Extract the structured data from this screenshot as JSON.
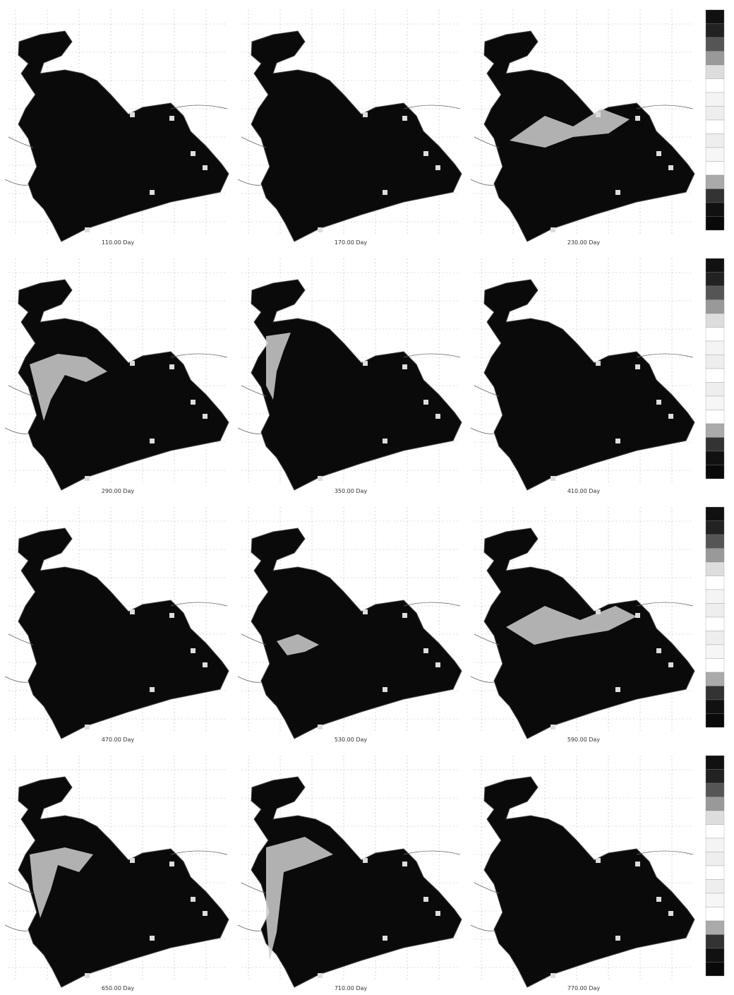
{
  "panels": [
    {
      "caption": "110.00 Day"
    },
    {
      "caption": "170.00 Day"
    },
    {
      "caption": "230.00 Day"
    },
    {
      "caption": "290.00 Day"
    },
    {
      "caption": "350.00 Day"
    },
    {
      "caption": "410.00 Day"
    },
    {
      "caption": "470.00 Day"
    },
    {
      "caption": "530.00 Day"
    },
    {
      "caption": "590.00 Day"
    },
    {
      "caption": "650.00 Day"
    },
    {
      "caption": "710.00 Day"
    },
    {
      "caption": "770.00 Day"
    }
  ]
}
